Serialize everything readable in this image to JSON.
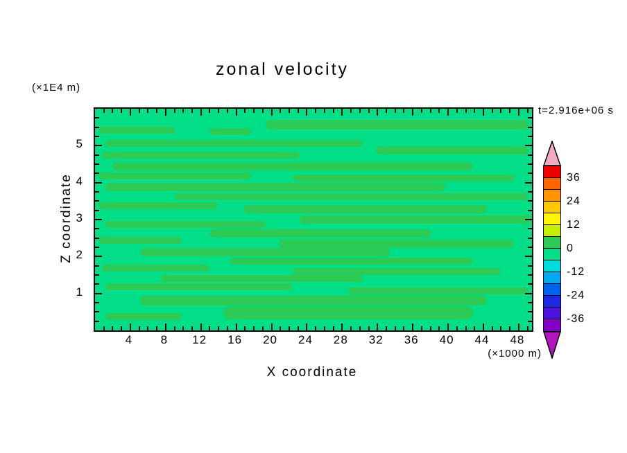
{
  "chart_data": {
    "type": "contour",
    "title": "zonal velocity",
    "xlabel": "X coordinate",
    "ylabel": "Z coordinate",
    "x_units": "(×1000 m)",
    "y_units": "(×1E4 m)",
    "time_annotation": "t=2.916e+06 s",
    "xlim": [
      0,
      49.5
    ],
    "ylim": [
      0,
      6
    ],
    "x_major_ticks": [
      4,
      8,
      12,
      16,
      20,
      24,
      28,
      32,
      36,
      40,
      44,
      48
    ],
    "x_minor_step": 1,
    "y_major_ticks": [
      1,
      2,
      3,
      4,
      5
    ],
    "y_minor_step": 0.25,
    "contour_interval": 6,
    "colorbar": {
      "tick_labels": [
        36,
        24,
        12,
        0,
        -12,
        -24,
        -36
      ],
      "value_range": [
        -42,
        42
      ],
      "box_colors_top_to_bottom": [
        "#F00000",
        "#FF6400",
        "#FF9600",
        "#FFC800",
        "#FFF600",
        "#C8EE00",
        "#2BCB55",
        "#00DE87",
        "#00DCDC",
        "#00AAF0",
        "#0064F0",
        "#1E28E6",
        "#4B14DC",
        "#8200C8"
      ],
      "top_arrow_color": "#F2A9C4",
      "bottom_arrow_color": "#B414BE"
    },
    "field": {
      "background_band": "-6 to 0",
      "background_color": "#00DE87",
      "streak_band": "0 to 6",
      "streak_color": "#2BCB55",
      "description": "Zonal velocity field near zero everywhere: horizontal streaks of the 0..6 contour band over a -6..0 background."
    },
    "streak_regions_x0_z0_x1_z1": [
      [
        19.3,
        5.44,
        49.1,
        5.7
      ],
      [
        0.4,
        5.33,
        9.0,
        5.51
      ],
      [
        13.0,
        5.29,
        17.7,
        5.47
      ],
      [
        1.2,
        4.97,
        30.3,
        5.16
      ],
      [
        31.8,
        4.77,
        49.1,
        4.99
      ],
      [
        0.8,
        4.65,
        23.2,
        4.84
      ],
      [
        2.0,
        4.33,
        42.8,
        4.56
      ],
      [
        0.4,
        4.09,
        17.7,
        4.27
      ],
      [
        22.4,
        4.03,
        47.5,
        4.22
      ],
      [
        1.2,
        3.77,
        39.7,
        3.99
      ],
      [
        9.0,
        3.53,
        49.1,
        3.71
      ],
      [
        0.4,
        3.28,
        13.8,
        3.47
      ],
      [
        16.9,
        3.17,
        44.4,
        3.39
      ],
      [
        23.2,
        2.89,
        49.5,
        3.11
      ],
      [
        1.2,
        2.78,
        19.3,
        2.96
      ],
      [
        13.0,
        2.51,
        38.1,
        2.74
      ],
      [
        0.4,
        2.35,
        9.8,
        2.53
      ],
      [
        20.8,
        2.23,
        47.5,
        2.46
      ],
      [
        5.1,
        2.01,
        33.4,
        2.23
      ],
      [
        15.3,
        1.78,
        42.8,
        1.97
      ],
      [
        0.8,
        1.59,
        13.0,
        1.78
      ],
      [
        22.4,
        1.5,
        46.0,
        1.69
      ],
      [
        7.5,
        1.31,
        30.3,
        1.5
      ],
      [
        1.2,
        1.09,
        22.4,
        1.28
      ],
      [
        28.7,
        0.97,
        49.1,
        1.16
      ],
      [
        5.1,
        0.67,
        44.4,
        0.94
      ],
      [
        14.5,
        0.3,
        42.8,
        0.64
      ],
      [
        1.2,
        0.28,
        9.8,
        0.47
      ]
    ]
  }
}
